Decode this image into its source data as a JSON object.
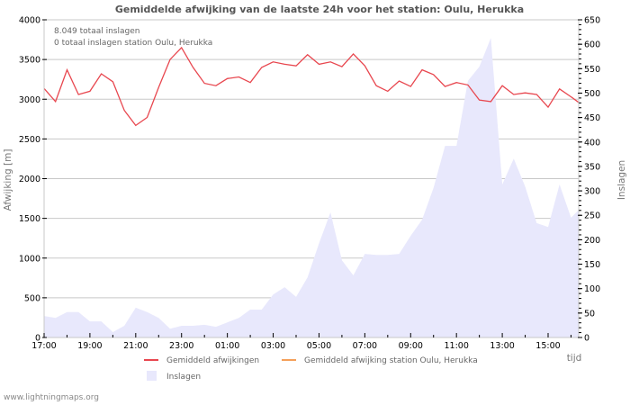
{
  "chart_data": {
    "type": "line",
    "title": "Gemiddelde afwijking van de laatste 24h voor het station: Oulu, Herukka",
    "xlabel": "tijd",
    "ylabel": "Afwijking  [m]",
    "y2label": "Inslagen",
    "ylim": [
      0,
      4000
    ],
    "y2lim": [
      0,
      650
    ],
    "yticks": [
      0,
      500,
      1000,
      1500,
      2000,
      2500,
      3000,
      3500,
      4000
    ],
    "y2ticks": [
      0,
      50,
      100,
      150,
      200,
      250,
      300,
      350,
      400,
      450,
      500,
      550,
      600,
      650
    ],
    "xticks": [
      "17:00",
      "19:00",
      "21:00",
      "23:00",
      "01:00",
      "03:00",
      "05:00",
      "07:00",
      "09:00",
      "11:00",
      "13:00",
      "15:00"
    ],
    "grid": true,
    "legend_position": "bottom",
    "annotations": [
      "8.049 totaal inslagen",
      "0 totaal inslagen station Oulu, Herukka"
    ],
    "x": [
      "17:00",
      "17:30",
      "18:00",
      "18:30",
      "19:00",
      "19:30",
      "20:00",
      "20:30",
      "21:00",
      "21:30",
      "22:00",
      "22:30",
      "23:00",
      "23:30",
      "00:00",
      "00:30",
      "01:00",
      "01:30",
      "02:00",
      "02:30",
      "03:00",
      "03:30",
      "04:00",
      "04:30",
      "05:00",
      "05:30",
      "06:00",
      "06:30",
      "07:00",
      "07:30",
      "08:00",
      "08:30",
      "09:00",
      "09:30",
      "10:00",
      "10:30",
      "11:00",
      "11:30",
      "12:00",
      "12:30",
      "13:00",
      "13:30",
      "14:00",
      "14:30",
      "15:00",
      "15:30",
      "16:00",
      "16:20"
    ],
    "series": [
      {
        "name": "Gemiddeld afwijkingen",
        "type": "line",
        "axis": "left",
        "color": "#e8474f",
        "values": [
          3135,
          2970,
          3370,
          3060,
          3100,
          3320,
          3220,
          2860,
          2670,
          2770,
          3150,
          3500,
          3650,
          3400,
          3200,
          3170,
          3260,
          3280,
          3210,
          3400,
          3470,
          3440,
          3420,
          3560,
          3440,
          3470,
          3410,
          3570,
          3420,
          3170,
          3100,
          3230,
          3160,
          3370,
          3310,
          3160,
          3210,
          3180,
          2990,
          2970,
          3170,
          3060,
          3080,
          3060,
          2900,
          3130,
          3030,
          2960
        ]
      },
      {
        "name": "Gemiddeld afwijking station Oulu, Herukka",
        "type": "line",
        "axis": "left",
        "color": "#f5a05a",
        "values": []
      },
      {
        "name": "Inslagen",
        "type": "area",
        "axis": "right",
        "color": "#e8e8fc",
        "values": [
          44,
          40,
          52,
          52,
          33,
          33,
          11,
          24,
          61,
          52,
          40,
          18,
          24,
          24,
          26,
          22,
          31,
          40,
          57,
          57,
          88,
          103,
          83,
          123,
          193,
          256,
          158,
          127,
          171,
          169,
          169,
          171,
          208,
          241,
          306,
          392,
          392,
          525,
          554,
          613,
          313,
          366,
          309,
          234,
          226,
          313,
          245,
          261
        ]
      }
    ]
  },
  "footer": "www.lightningmaps.org"
}
